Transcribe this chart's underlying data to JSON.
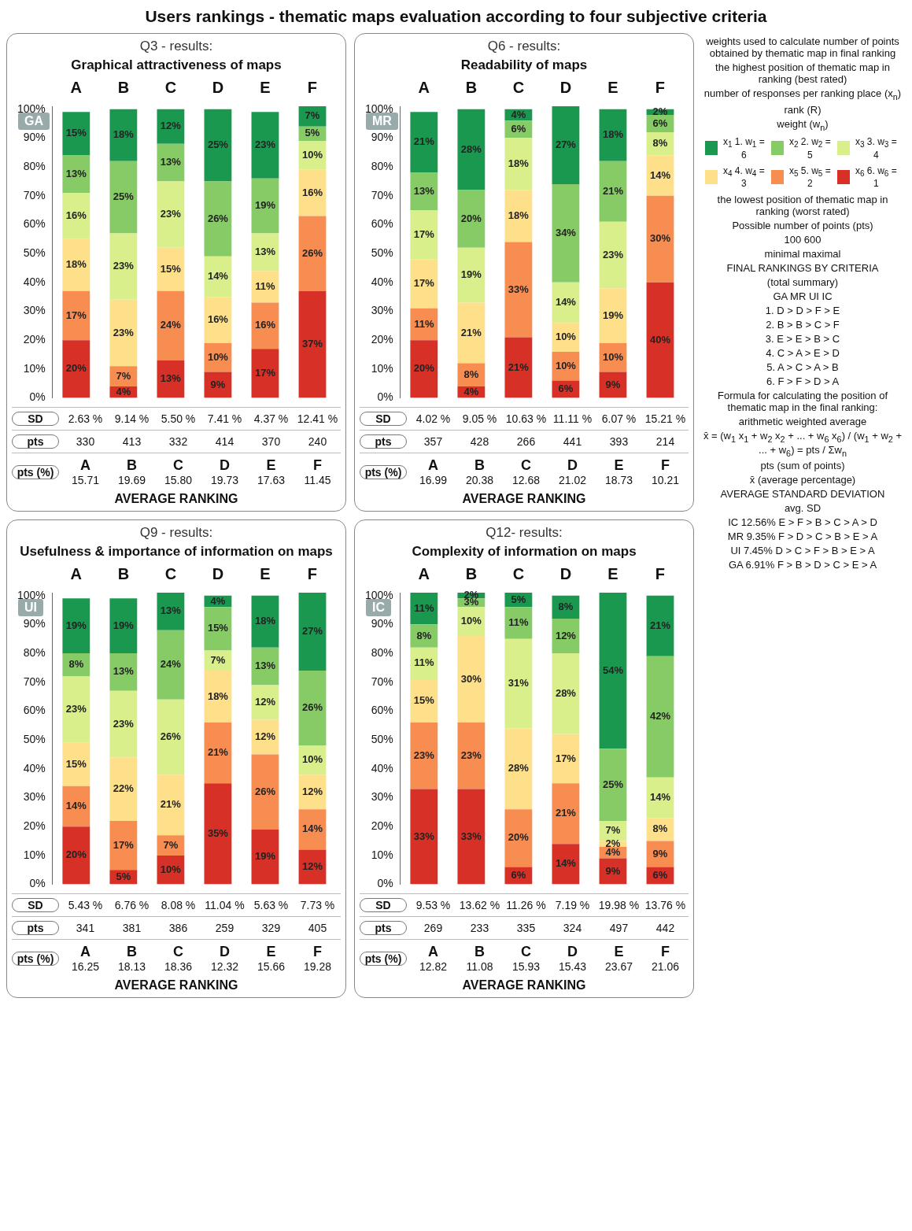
{
  "chart_data": [
    {
      "type": "bar",
      "stacked": true,
      "title": "Q3 - results:",
      "subtitle": "Graphical attractiveness of maps",
      "ylabel": "GA",
      "categories": [
        "A",
        "B",
        "C",
        "D",
        "E",
        "F"
      ],
      "ylim": [
        0,
        101
      ],
      "yticks": [
        {
          "value": 0,
          "label": "0%"
        },
        {
          "value": 10,
          "label": "10%"
        },
        {
          "value": 20,
          "label": "20%"
        },
        {
          "value": 30,
          "label": "30%"
        },
        {
          "value": 40,
          "label": "40%"
        },
        {
          "value": 50,
          "label": "50%"
        },
        {
          "value": 60,
          "label": "60%"
        },
        {
          "value": 70,
          "label": "70%"
        },
        {
          "value": 80,
          "label": "80%"
        },
        {
          "value": 90,
          "label": "90%"
        },
        {
          "value": 100,
          "label": "100%"
        }
      ],
      "series": [
        {
          "color": "#d73027",
          "values": [
            20,
            4,
            13,
            9,
            17,
            37
          ],
          "value_labels": [
            "20%",
            "4%",
            "13%",
            "9%",
            "17%",
            "37%"
          ]
        },
        {
          "color": "#f88d52",
          "values": [
            17,
            7,
            24,
            10,
            16,
            26
          ],
          "value_labels": [
            "17%",
            "7%",
            "24%",
            "10%",
            "16%",
            "26%"
          ]
        },
        {
          "color": "#fee08b",
          "values": [
            18,
            23,
            15,
            16,
            11,
            16
          ],
          "value_labels": [
            "18%",
            "23%",
            "15%",
            "16%",
            "11%",
            "16%"
          ]
        },
        {
          "color": "#d9ef8b",
          "values": [
            16,
            23,
            23,
            14,
            13,
            10
          ],
          "value_labels": [
            "16%",
            "23%",
            "23%",
            "14%",
            "13%",
            "10%"
          ]
        },
        {
          "color": "#86cb66",
          "values": [
            13,
            25,
            13,
            26,
            19,
            5
          ],
          "value_labels": [
            "13%",
            "25%",
            "13%",
            "26%",
            "19%",
            "5%"
          ]
        },
        {
          "color": "#1a9850",
          "values": [
            15,
            18,
            12,
            25,
            23,
            7
          ],
          "value_labels": [
            "15%",
            "18%",
            "12%",
            "25%",
            "23%",
            "7%"
          ]
        }
      ],
      "annotations": [
        "SD",
        "2.63 %",
        "9.14 %",
        "5.50 %",
        "7.41 %",
        "4.37 %",
        "12.41 %",
        "pts",
        "330",
        "413",
        "332",
        "414",
        "370",
        "240",
        "pts (%)",
        "15.71",
        "19.69",
        "15.80",
        "19.73",
        "17.63",
        "11.45",
        "AVERAGE RANKING"
      ]
    },
    {
      "type": "bar",
      "stacked": true,
      "title": "Q6 - results:",
      "subtitle": "Readability of maps",
      "ylabel": "MR",
      "categories": [
        "A",
        "B",
        "C",
        "D",
        "E",
        "F"
      ],
      "ylim": [
        0,
        101
      ],
      "yticks": [
        {
          "value": 0,
          "label": "0%"
        },
        {
          "value": 10,
          "label": "10%"
        },
        {
          "value": 20,
          "label": "20%"
        },
        {
          "value": 30,
          "label": "30%"
        },
        {
          "value": 40,
          "label": "40%"
        },
        {
          "value": 50,
          "label": "50%"
        },
        {
          "value": 60,
          "label": "60%"
        },
        {
          "value": 70,
          "label": "70%"
        },
        {
          "value": 80,
          "label": "80%"
        },
        {
          "value": 90,
          "label": "90%"
        },
        {
          "value": 100,
          "label": "100%"
        }
      ],
      "series": [
        {
          "color": "#d73027",
          "values": [
            20,
            4,
            21,
            6,
            9,
            40
          ],
          "value_labels": [
            "20%",
            "4%",
            "21%",
            "6%",
            "9%",
            "40%"
          ]
        },
        {
          "color": "#f88d52",
          "values": [
            11,
            8,
            33,
            10,
            10,
            30
          ],
          "value_labels": [
            "11%",
            "8%",
            "33%",
            "10%",
            "10%",
            "30%"
          ]
        },
        {
          "color": "#fee08b",
          "values": [
            17,
            21,
            18,
            10,
            19,
            14
          ],
          "value_labels": [
            "17%",
            "21%",
            "18%",
            "10%",
            "19%",
            "14%"
          ]
        },
        {
          "color": "#d9ef8b",
          "values": [
            17,
            19,
            18,
            14,
            23,
            8
          ],
          "value_labels": [
            "17%",
            "19%",
            "18%",
            "14%",
            "23%",
            "8%"
          ]
        },
        {
          "color": "#86cb66",
          "values": [
            13,
            20,
            6,
            34,
            21,
            6
          ],
          "value_labels": [
            "13%",
            "20%",
            "6%",
            "34%",
            "21%",
            "6%"
          ]
        },
        {
          "color": "#1a9850",
          "values": [
            21,
            28,
            4,
            27,
            18,
            2
          ],
          "value_labels": [
            "21%",
            "28%",
            "4%",
            "27%",
            "18%",
            "2%"
          ]
        }
      ],
      "annotations": [
        "SD",
        "4.02 %",
        "9.05 %",
        "10.63 %",
        "11.11 %",
        "6.07 %",
        "15.21 %",
        "pts",
        "357",
        "428",
        "266",
        "441",
        "393",
        "214",
        "pts (%)",
        "16.99",
        "20.38",
        "12.68",
        "21.02",
        "18.73",
        "10.21",
        "AVERAGE RANKING"
      ]
    },
    {
      "type": "bar",
      "stacked": true,
      "title": "Q9 - results:",
      "subtitle": "Usefulness & importance of information on maps",
      "ylabel": "UI",
      "categories": [
        "A",
        "B",
        "C",
        "D",
        "E",
        "F"
      ],
      "ylim": [
        0,
        101
      ],
      "yticks": [
        {
          "value": 0,
          "label": "0%"
        },
        {
          "value": 10,
          "label": "10%"
        },
        {
          "value": 20,
          "label": "20%"
        },
        {
          "value": 30,
          "label": "30%"
        },
        {
          "value": 40,
          "label": "40%"
        },
        {
          "value": 50,
          "label": "50%"
        },
        {
          "value": 60,
          "label": "60%"
        },
        {
          "value": 70,
          "label": "70%"
        },
        {
          "value": 80,
          "label": "80%"
        },
        {
          "value": 90,
          "label": "90%"
        },
        {
          "value": 100,
          "label": "100%"
        }
      ],
      "series": [
        {
          "color": "#d73027",
          "values": [
            20,
            5,
            10,
            35,
            19,
            12
          ],
          "value_labels": [
            "20%",
            "5%",
            "10%",
            "35%",
            "19%",
            "12%"
          ]
        },
        {
          "color": "#f88d52",
          "values": [
            14,
            17,
            7,
            21,
            26,
            14
          ],
          "value_labels": [
            "14%",
            "17%",
            "7%",
            "21%",
            "26%",
            "14%"
          ]
        },
        {
          "color": "#fee08b",
          "values": [
            15,
            22,
            21,
            18,
            12,
            12
          ],
          "value_labels": [
            "15%",
            "22%",
            "21%",
            "18%",
            "12%",
            "12%"
          ]
        },
        {
          "color": "#d9ef8b",
          "values": [
            23,
            23,
            26,
            7,
            12,
            10
          ],
          "value_labels": [
            "23%",
            "23%",
            "26%",
            "7%",
            "12%",
            "10%"
          ]
        },
        {
          "color": "#86cb66",
          "values": [
            8,
            13,
            24,
            15,
            13,
            26
          ],
          "value_labels": [
            "8%",
            "13%",
            "24%",
            "15%",
            "13%",
            "26%"
          ]
        },
        {
          "color": "#1a9850",
          "values": [
            19,
            19,
            13,
            4,
            18,
            27
          ],
          "value_labels": [
            "19%",
            "19%",
            "13%",
            "4%",
            "18%",
            "27%"
          ]
        }
      ],
      "annotations": [
        "SD",
        "5.43 %",
        "6.76 %",
        "8.08 %",
        "11.04 %",
        "5.63 %",
        "7.73 %",
        "pts",
        "341",
        "381",
        "386",
        "259",
        "329",
        "405",
        "pts (%)",
        "16.25",
        "18.13",
        "18.36",
        "12.32",
        "15.66",
        "19.28",
        "AVERAGE RANKING"
      ]
    },
    {
      "type": "bar",
      "stacked": true,
      "title": "Q12- results:",
      "subtitle": "Complexity of information on maps",
      "ylabel": "IC",
      "categories": [
        "A",
        "B",
        "C",
        "D",
        "E",
        "F"
      ],
      "ylim": [
        0,
        101
      ],
      "yticks": [
        {
          "value": 0,
          "label": "0%"
        },
        {
          "value": 10,
          "label": "10%"
        },
        {
          "value": 20,
          "label": "20%"
        },
        {
          "value": 30,
          "label": "30%"
        },
        {
          "value": 40,
          "label": "40%"
        },
        {
          "value": 50,
          "label": "50%"
        },
        {
          "value": 60,
          "label": "60%"
        },
        {
          "value": 70,
          "label": "70%"
        },
        {
          "value": 80,
          "label": "80%"
        },
        {
          "value": 90,
          "label": "90%"
        },
        {
          "value": 100,
          "label": "100%"
        }
      ],
      "series": [
        {
          "color": "#d73027",
          "values": [
            33,
            33,
            6,
            14,
            9,
            6
          ],
          "value_labels": [
            "33%",
            "33%",
            "6%",
            "14%",
            "9%",
            "6%"
          ]
        },
        {
          "color": "#f88d52",
          "values": [
            23,
            23,
            20,
            21,
            4,
            9
          ],
          "value_labels": [
            "23%",
            "23%",
            "20%",
            "21%",
            "4%",
            "9%"
          ]
        },
        {
          "color": "#fee08b",
          "values": [
            15,
            30,
            28,
            17,
            2,
            8
          ],
          "value_labels": [
            "15%",
            "30%",
            "28%",
            "17%",
            "2%",
            "8%"
          ]
        },
        {
          "color": "#d9ef8b",
          "values": [
            11,
            10,
            31,
            28,
            7,
            14
          ],
          "value_labels": [
            "11%",
            "10%",
            "31%",
            "28%",
            "7%",
            "14%"
          ]
        },
        {
          "color": "#86cb66",
          "values": [
            8,
            3,
            11,
            12,
            25,
            42
          ],
          "value_labels": [
            "8%",
            "3%",
            "11%",
            "12%",
            "25%",
            "42%"
          ]
        },
        {
          "color": "#1a9850",
          "values": [
            11,
            2,
            5,
            8,
            54,
            21
          ],
          "value_labels": [
            "11%",
            "2%",
            "5%",
            "8%",
            "54%",
            "21%"
          ]
        }
      ],
      "annotations": [
        "SD",
        "9.53 %",
        "13.62 %",
        "11.26 %",
        "7.19 %",
        "19.98 %",
        "13.76 %",
        "pts",
        "269",
        "233",
        "335",
        "324",
        "497",
        "442",
        "pts (%)",
        "12.82",
        "11.08",
        "15.93",
        "15.43",
        "23.67",
        "21.06",
        "AVERAGE RANKING"
      ]
    },
    {
      "type": "other",
      "title": "Users rankings - thematic maps evaluation according to four subjective criteria",
      "colors": [
        "#1a9850",
        "#86cb66",
        "#d9ef8b",
        "#fee08b",
        "#f88d52",
        "#d73027"
      ],
      "annotations": [
        "weights used to calculate number of points obtained by thematic map in final ranking",
        "the highest position of thematic map in ranking (best rated)",
        "number of responses per ranking place (x$_{n}$)",
        "rank (R)",
        "weight (w$_{n}$)",
        "x$_{1}$ 1. w$_{1}$ = 6",
        "x$_{2}$ 2. w$_{2}$ = 5",
        "x$_{3}$ 3. w$_{3}$ = 4",
        "x$_{4}$ 4. w$_{4}$ = 3",
        "x$_{5}$ 5. w$_{5}$ = 2",
        "x$_{6}$ 6. w$_{6}$ = 1",
        "the lowest position of thematic map in ranking (worst rated)",
        "Possible number of points (pts)",
        "100  600",
        "minimal  maximal",
        "FINAL RANKINGS BY CRITERIA",
        "(total summary)",
        "GA  MR  UI  IC",
        "1.  D > D > F > E",
        "2.  B > B > C > F",
        "3.  E > E > B > C",
        "4.  C > A > E > D",
        "5.  A > C > A > B",
        "6.  F > F > D > A",
        "Formula for calculating the position of thematic map in the final ranking:",
        "arithmetic weighted average",
        "x̄ = (w$_{1}$ x$_{1}$ + w$_{2}$ x$_{2}$ + ... + w$_{6}$ x$_{6}$) / (w$_{1}$ + w$_{2}$ + ... + w$_{6}$) = pts / Σw$_{n}$",
        "pts (sum of points)",
        "x̄ (average percentage)",
        "AVERAGE STANDARD DEVIATION",
        "avg. SD",
        "IC 12.56%  E > F > B > C > A > D",
        "MR 9.35%  F > D > C > B > E > A",
        "UI 7.45%  D > C > F > B > E > A",
        "GA 6.91%  F > B > D > C > E > A"
      ]
    }
  ]
}
